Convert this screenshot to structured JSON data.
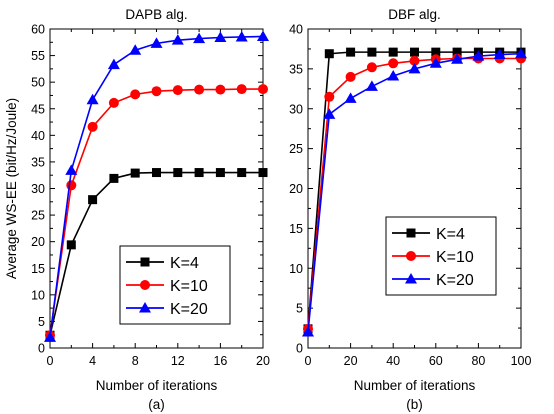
{
  "chart_data": [
    {
      "type": "line",
      "title": "DAPB alg.",
      "caption": "(a)",
      "xlabel": "Number of iterations",
      "ylabel": "Average WS-EE (bit/Hz/Joule)",
      "xlim": [
        0,
        20
      ],
      "ylim": [
        0,
        60
      ],
      "xticks": [
        0,
        4,
        8,
        12,
        16,
        20
      ],
      "yticks": [
        0,
        5,
        10,
        15,
        20,
        25,
        30,
        35,
        40,
        45,
        50,
        55,
        60
      ],
      "grid": false,
      "legend_position": "bottom-right",
      "x": [
        0,
        2,
        4,
        6,
        8,
        10,
        12,
        14,
        16,
        18,
        20
      ],
      "series": [
        {
          "name": "K=4",
          "color": "#000000",
          "marker": "square",
          "values": [
            2.4,
            19.4,
            27.9,
            31.9,
            32.9,
            33.0,
            33.0,
            33.0,
            33.0,
            33.0,
            33.0
          ]
        },
        {
          "name": "K=10",
          "color": "#ff0000",
          "marker": "circle",
          "values": [
            2.4,
            30.6,
            41.6,
            46.1,
            47.7,
            48.3,
            48.5,
            48.6,
            48.6,
            48.7,
            48.7
          ]
        },
        {
          "name": "K=20",
          "color": "#0000ff",
          "marker": "triangle",
          "values": [
            2.0,
            33.4,
            46.7,
            53.3,
            56.0,
            57.3,
            57.9,
            58.2,
            58.4,
            58.5,
            58.6
          ]
        }
      ]
    },
    {
      "type": "line",
      "title": "DBF alg.",
      "caption": "(b)",
      "xlabel": "Number of iterations",
      "ylabel": "",
      "xlim": [
        0,
        100
      ],
      "ylim": [
        0,
        40
      ],
      "xticks": [
        0,
        20,
        40,
        60,
        80,
        100
      ],
      "yticks": [
        0,
        5,
        10,
        15,
        20,
        25,
        30,
        35,
        40
      ],
      "grid": false,
      "legend_position": "center-right",
      "x": [
        0,
        10,
        20,
        30,
        40,
        50,
        60,
        70,
        80,
        90,
        100
      ],
      "series": [
        {
          "name": "K=4",
          "color": "#000000",
          "marker": "square",
          "values": [
            2.4,
            36.9,
            37.1,
            37.1,
            37.1,
            37.1,
            37.1,
            37.1,
            37.1,
            37.1,
            37.1
          ]
        },
        {
          "name": "K=10",
          "color": "#ff0000",
          "marker": "circle",
          "values": [
            2.4,
            31.5,
            34.0,
            35.2,
            35.7,
            36.0,
            36.2,
            36.3,
            36.3,
            36.3,
            36.3
          ]
        },
        {
          "name": "K=20",
          "color": "#0000ff",
          "marker": "triangle",
          "values": [
            2.0,
            29.3,
            31.3,
            32.8,
            34.1,
            35.0,
            35.7,
            36.2,
            36.6,
            36.8,
            36.9
          ]
        }
      ]
    }
  ]
}
